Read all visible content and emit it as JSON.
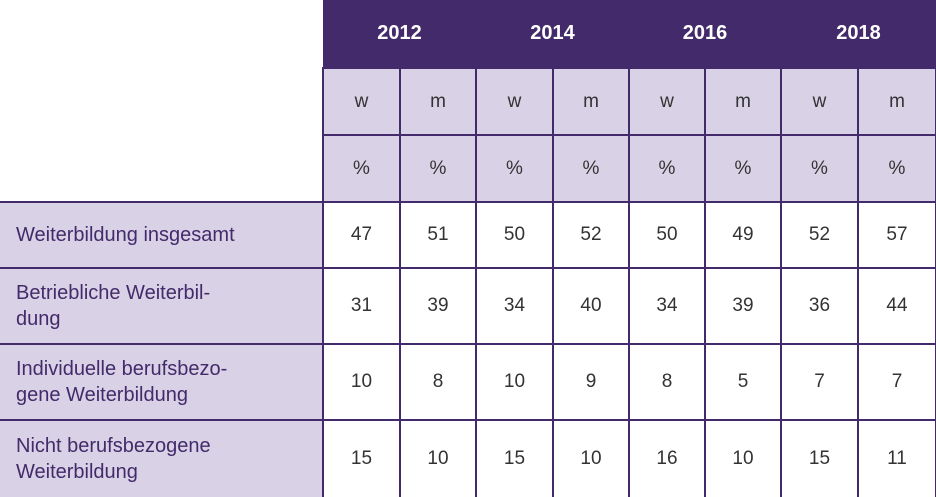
{
  "chart_data": {
    "type": "table",
    "years": [
      "2012",
      "2014",
      "2016",
      "2018"
    ],
    "genders": [
      "w",
      "m"
    ],
    "unit": "%",
    "rows": [
      {
        "label": "Weiterbildung insgesamt",
        "values": [
          "47",
          "51",
          "50",
          "52",
          "50",
          "49",
          "52",
          "57"
        ]
      },
      {
        "label": "Betriebliche Weiterbil-\ndung",
        "values": [
          "31",
          "39",
          "34",
          "40",
          "34",
          "39",
          "36",
          "44"
        ]
      },
      {
        "label": "Individuelle berufsbezo-\ngene Weiterbildung",
        "values": [
          "10",
          "8",
          "10",
          "9",
          "8",
          "5",
          "7",
          "7"
        ]
      },
      {
        "label": "Nicht berufsbezogene\nWeiterbildung",
        "values": [
          "15",
          "10",
          "15",
          "10",
          "16",
          "10",
          "15",
          "11"
        ]
      }
    ]
  },
  "colors": {
    "header": "#432a6a",
    "light": "#d9d1e6"
  }
}
